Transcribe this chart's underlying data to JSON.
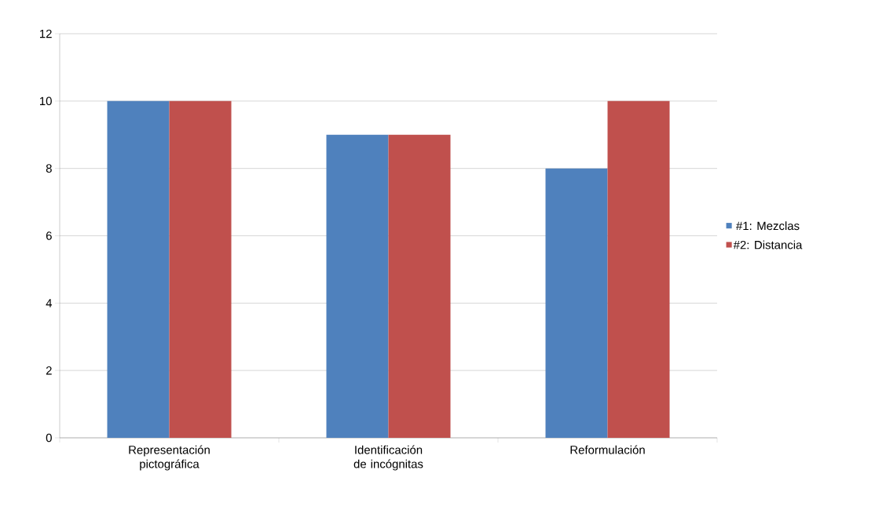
{
  "chart_data": {
    "type": "bar",
    "categories": [
      "Representación pictográfica",
      "Identificación de incógnitas",
      "Reformulación"
    ],
    "series": [
      {
        "name": "#1: Mezclas",
        "color": "#4f81bd",
        "values": [
          10,
          9,
          8
        ]
      },
      {
        "name": "#2: Distancia",
        "color": "#c0504d",
        "values": [
          10,
          9,
          10
        ]
      }
    ],
    "ylim": [
      0,
      12
    ],
    "yticks": [
      0,
      2,
      4,
      6,
      8,
      10,
      12
    ],
    "grid": "y",
    "legend": "right"
  }
}
